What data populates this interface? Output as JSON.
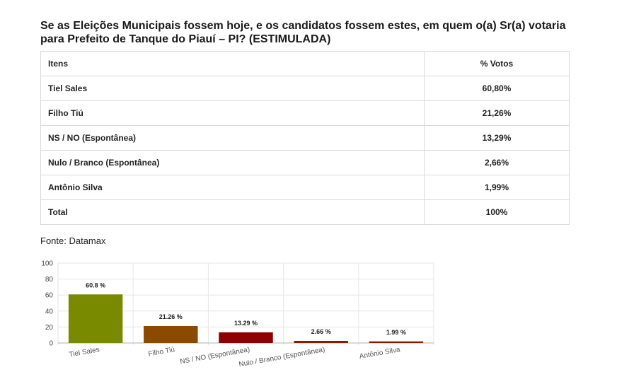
{
  "title": "Se as Eleições Municipais fossem hoje, e os candidatos fossem estes, em quem o(a) Sr(a) votaria para Prefeito de Tanque do Piauí – PI? (ESTIMULADA)",
  "table": {
    "headers": [
      "Itens",
      "% Votos"
    ],
    "rows": [
      {
        "item": "Tiel Sales",
        "votes": "60,80%"
      },
      {
        "item": "Filho Tiú",
        "votes": "21,26%"
      },
      {
        "item": "NS / NO (Espontânea)",
        "votes": "13,29%"
      },
      {
        "item": "Nulo / Branco (Espontânea)",
        "votes": "2,66%"
      },
      {
        "item": "Antônio Silva",
        "votes": "1,99%"
      },
      {
        "item": "Total",
        "votes": "100%"
      }
    ]
  },
  "source": "Fonte: Datamax",
  "chart_data": {
    "type": "bar",
    "categories": [
      "Tiel Sales",
      "Filho Tiú",
      "NS / NO (Espontânea)",
      "Nulo / Branco (Espontânea)",
      "Antônio Silva"
    ],
    "values": [
      60.8,
      21.26,
      13.29,
      2.66,
      1.99
    ],
    "data_labels": [
      "60.8 %",
      "21.26 %",
      "13.29 %",
      "2.66 %",
      "1.99 %"
    ],
    "colors": [
      "#7a8a00",
      "#8b4a00",
      "#8b0000",
      "#8b1a00",
      "#8b1a00"
    ],
    "yticks": [
      0,
      20,
      40,
      60,
      80,
      100
    ],
    "ylim": [
      0,
      100
    ],
    "grid": true,
    "title": "",
    "xlabel": "",
    "ylabel": ""
  }
}
